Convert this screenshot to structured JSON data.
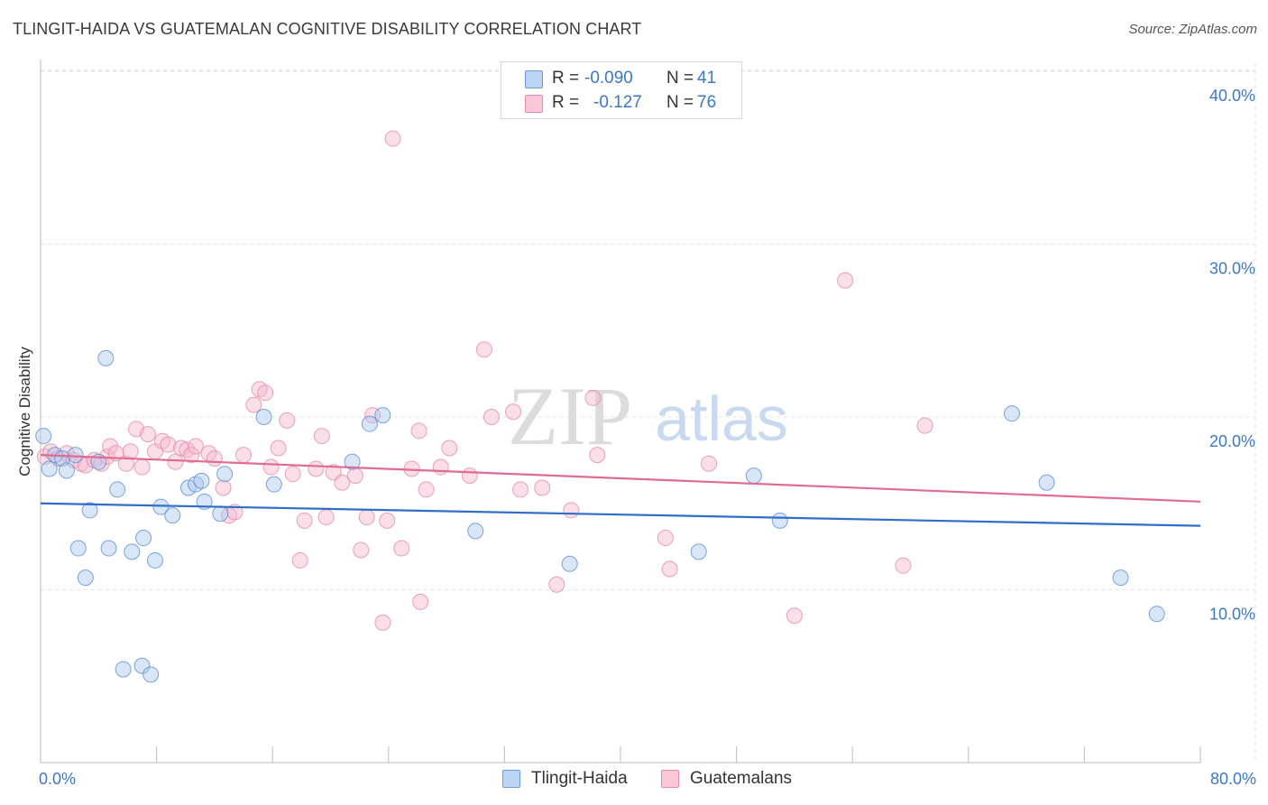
{
  "header": {
    "title": "TLINGIT-HAIDA VS GUATEMALAN COGNITIVE DISABILITY CORRELATION CHART",
    "source": "Source: ZipAtlas.com"
  },
  "watermark": {
    "zip": "ZIP",
    "atlas": "atlas"
  },
  "legend": {
    "rows": [
      {
        "r_label": "R =",
        "r_value": "-0.090",
        "n_label": "N =",
        "n_value": "41",
        "color": "#a9c8f0"
      },
      {
        "r_label": "R =",
        "r_value": "-0.127",
        "n_label": "N =",
        "n_value": "76",
        "color": "#f6b8cb"
      }
    ]
  },
  "bottom_legend": [
    {
      "label": "Tlingit-Haida",
      "color": "#a9c8f0"
    },
    {
      "label": "Guatemalans",
      "color": "#f6b8cb"
    }
  ],
  "chart_data": {
    "type": "scatter",
    "title": "TLINGIT-HAIDA VS GUATEMALAN COGNITIVE DISABILITY CORRELATION CHART",
    "xlabel": "",
    "ylabel": "Cognitive Disability",
    "xlim": [
      0,
      80
    ],
    "ylim": [
      0,
      42
    ],
    "x_tick_labels": [
      "0.0%",
      "80.0%"
    ],
    "y_ticks": [
      10,
      20,
      30,
      40
    ],
    "y_tick_labels": [
      "10.0%",
      "20.0%",
      "30.0%",
      "40.0%"
    ],
    "grid": true,
    "legend_position": "top-center",
    "series": [
      {
        "name": "Tlingit-Haida",
        "color": "#a9c8f0",
        "stroke": "#5b8fd6",
        "trend_color": "#2f6fc9",
        "trend": {
          "x": [
            0,
            80
          ],
          "y": [
            15.0,
            13.7
          ]
        },
        "points": [
          [
            0.2,
            18.9
          ],
          [
            0.6,
            17.0
          ],
          [
            1.0,
            17.8
          ],
          [
            1.5,
            17.6
          ],
          [
            1.8,
            16.9
          ],
          [
            2.4,
            17.8
          ],
          [
            2.6,
            12.4
          ],
          [
            3.1,
            10.7
          ],
          [
            3.4,
            14.6
          ],
          [
            4.0,
            17.4
          ],
          [
            4.5,
            23.4
          ],
          [
            4.7,
            12.4
          ],
          [
            5.3,
            15.8
          ],
          [
            5.7,
            5.4
          ],
          [
            6.3,
            12.2
          ],
          [
            7.0,
            5.6
          ],
          [
            7.1,
            13.0
          ],
          [
            7.6,
            5.1
          ],
          [
            7.9,
            11.7
          ],
          [
            8.3,
            14.8
          ],
          [
            9.1,
            14.3
          ],
          [
            10.2,
            15.9
          ],
          [
            10.7,
            16.1
          ],
          [
            11.1,
            16.3
          ],
          [
            11.3,
            15.1
          ],
          [
            12.4,
            14.4
          ],
          [
            12.7,
            16.7
          ],
          [
            15.4,
            20.0
          ],
          [
            16.1,
            16.1
          ],
          [
            21.5,
            17.4
          ],
          [
            22.7,
            19.6
          ],
          [
            23.6,
            20.1
          ],
          [
            30.0,
            13.4
          ],
          [
            36.5,
            11.5
          ],
          [
            45.4,
            12.2
          ],
          [
            49.2,
            16.6
          ],
          [
            51.0,
            14.0
          ],
          [
            67.0,
            20.2
          ],
          [
            69.4,
            16.2
          ],
          [
            74.5,
            10.7
          ],
          [
            77.0,
            8.6
          ]
        ]
      },
      {
        "name": "Guatemalans",
        "color": "#f6b8cb",
        "stroke": "#e68aa6",
        "trend_color": "#e06b93",
        "trend": {
          "x": [
            0,
            80
          ],
          "y": [
            17.8,
            15.1
          ]
        },
        "points": [
          [
            0.3,
            17.7
          ],
          [
            0.7,
            18.0
          ],
          [
            1.2,
            17.6
          ],
          [
            1.8,
            17.9
          ],
          [
            2.3,
            17.5
          ],
          [
            2.8,
            17.3
          ],
          [
            3.1,
            17.2
          ],
          [
            3.7,
            17.5
          ],
          [
            4.2,
            17.3
          ],
          [
            4.6,
            17.7
          ],
          [
            4.8,
            18.3
          ],
          [
            5.2,
            17.9
          ],
          [
            5.9,
            17.3
          ],
          [
            6.2,
            18.0
          ],
          [
            6.6,
            19.3
          ],
          [
            7.0,
            17.1
          ],
          [
            7.4,
            19.0
          ],
          [
            7.9,
            18.0
          ],
          [
            8.4,
            18.6
          ],
          [
            8.8,
            18.4
          ],
          [
            9.3,
            17.4
          ],
          [
            9.7,
            18.2
          ],
          [
            10.1,
            18.1
          ],
          [
            10.4,
            17.8
          ],
          [
            10.7,
            18.3
          ],
          [
            11.6,
            17.9
          ],
          [
            12.0,
            17.6
          ],
          [
            12.6,
            15.9
          ],
          [
            13.0,
            14.3
          ],
          [
            13.4,
            14.5
          ],
          [
            14.0,
            17.8
          ],
          [
            14.7,
            20.7
          ],
          [
            15.1,
            21.6
          ],
          [
            15.5,
            21.4
          ],
          [
            15.9,
            17.1
          ],
          [
            16.4,
            18.2
          ],
          [
            17.0,
            19.8
          ],
          [
            17.4,
            16.7
          ],
          [
            17.9,
            11.7
          ],
          [
            18.2,
            14.0
          ],
          [
            19.0,
            17.0
          ],
          [
            19.4,
            18.9
          ],
          [
            19.7,
            14.2
          ],
          [
            20.2,
            16.8
          ],
          [
            20.8,
            16.2
          ],
          [
            21.7,
            16.6
          ],
          [
            22.1,
            12.3
          ],
          [
            22.5,
            14.2
          ],
          [
            22.9,
            20.1
          ],
          [
            23.6,
            8.1
          ],
          [
            23.9,
            14.0
          ],
          [
            24.3,
            36.1
          ],
          [
            24.9,
            12.4
          ],
          [
            25.6,
            17.0
          ],
          [
            26.1,
            19.2
          ],
          [
            26.2,
            9.3
          ],
          [
            26.6,
            15.8
          ],
          [
            27.6,
            17.1
          ],
          [
            28.2,
            18.2
          ],
          [
            29.6,
            16.6
          ],
          [
            30.6,
            23.9
          ],
          [
            31.1,
            20.0
          ],
          [
            32.6,
            20.3
          ],
          [
            33.1,
            15.8
          ],
          [
            34.6,
            15.9
          ],
          [
            35.6,
            10.3
          ],
          [
            36.6,
            14.6
          ],
          [
            38.1,
            21.1
          ],
          [
            38.4,
            17.8
          ],
          [
            43.1,
            13.0
          ],
          [
            43.4,
            11.2
          ],
          [
            46.1,
            17.3
          ],
          [
            52.0,
            8.5
          ],
          [
            55.5,
            27.9
          ],
          [
            59.5,
            11.4
          ],
          [
            61.0,
            19.5
          ]
        ]
      }
    ]
  }
}
